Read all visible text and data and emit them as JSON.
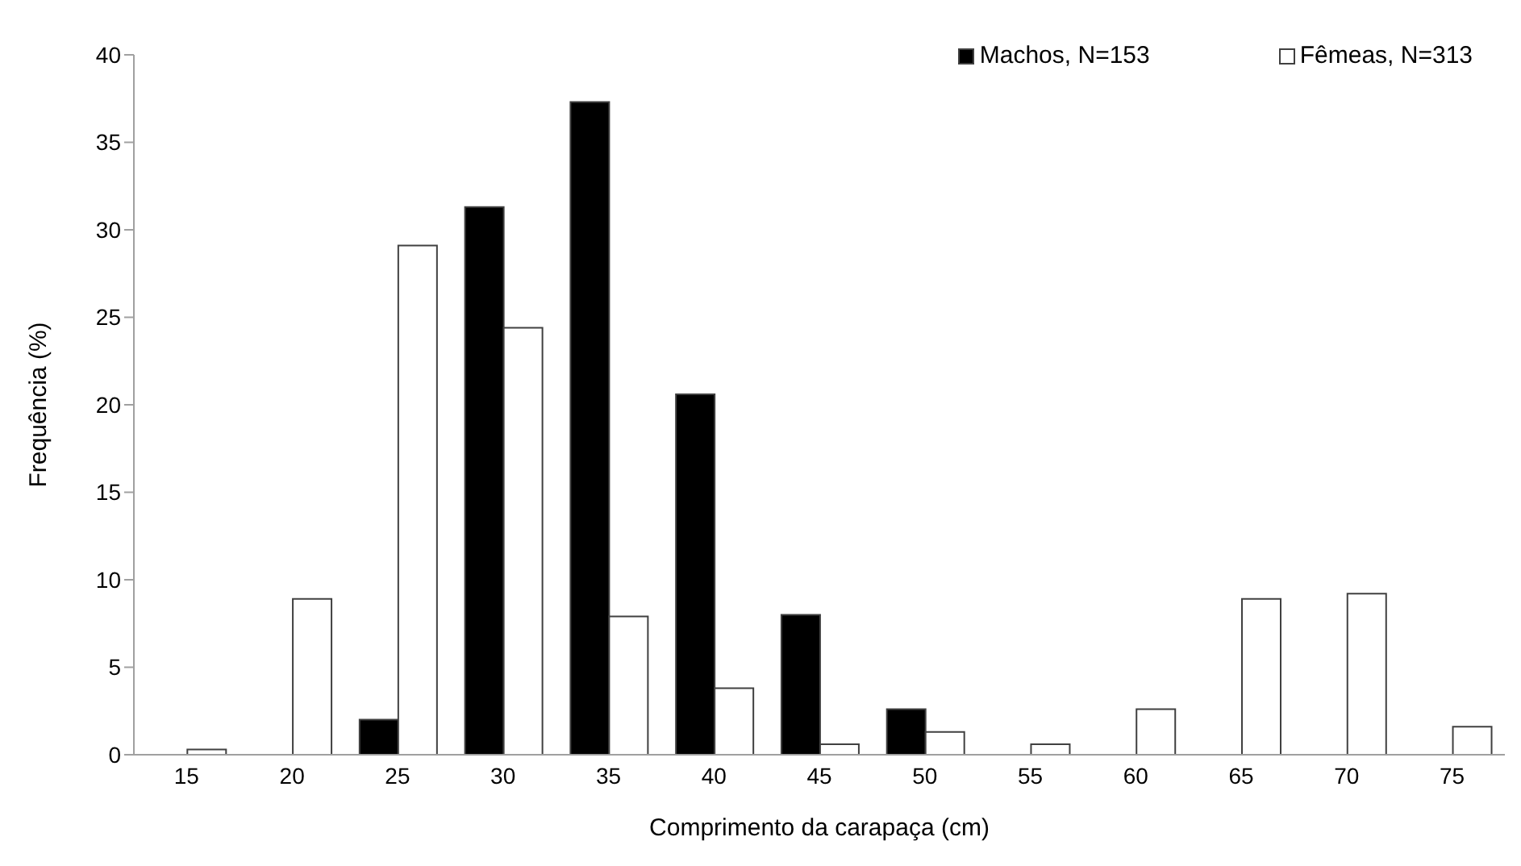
{
  "chart_data": {
    "type": "bar",
    "xlabel": "Comprimento da carapaça (cm)",
    "ylabel": "Frequência (%)",
    "categories": [
      "15",
      "20",
      "25",
      "30",
      "35",
      "40",
      "45",
      "50",
      "55",
      "60",
      "65",
      "70",
      "75"
    ],
    "series": [
      {
        "name": "Machos, N=153",
        "color": "#000000",
        "values": [
          0,
          0,
          2.0,
          31.3,
          37.3,
          20.6,
          8.0,
          2.6,
          0,
          0,
          0,
          0,
          0
        ]
      },
      {
        "name": "Fêmeas, N=313",
        "color": "#ffffff",
        "values": [
          0.3,
          8.9,
          29.1,
          24.4,
          7.9,
          3.8,
          0.6,
          1.3,
          0.6,
          2.6,
          8.9,
          9.2,
          1.6
        ]
      }
    ],
    "ylim": [
      0,
      40
    ],
    "yticks": [
      0,
      5,
      10,
      15,
      20,
      25,
      30,
      35,
      40
    ],
    "grid": false,
    "legend": "top right"
  }
}
